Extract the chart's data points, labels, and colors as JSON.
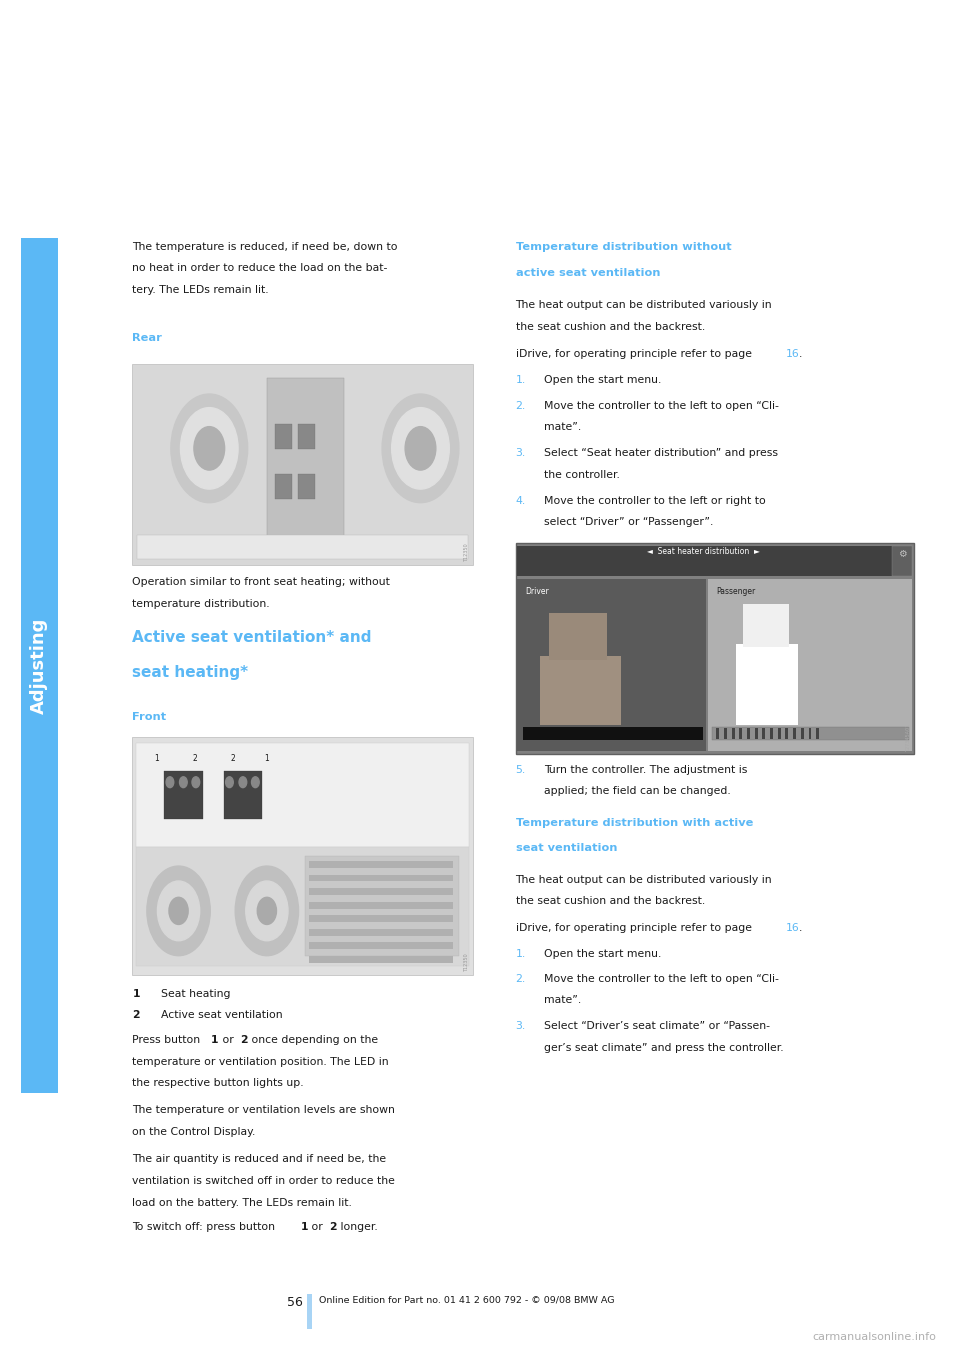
{
  "page_width": 9.6,
  "page_height": 13.58,
  "bg_color": "#ffffff",
  "side_tab_color": "#5bb8f5",
  "side_tab_text": "Adjusting",
  "page_number": "56",
  "footer_text": "Online Edition for Part no. 01 41 2 600 792 - © 09/08 BMW AG",
  "footer_bar_color": "#a8d4f5",
  "blue_color": "#5bb8f5",
  "black_color": "#1a1a1a",
  "body_font_size": 7.8,
  "subheading_font_size": 8.2,
  "section_heading_font_size": 11.0
}
